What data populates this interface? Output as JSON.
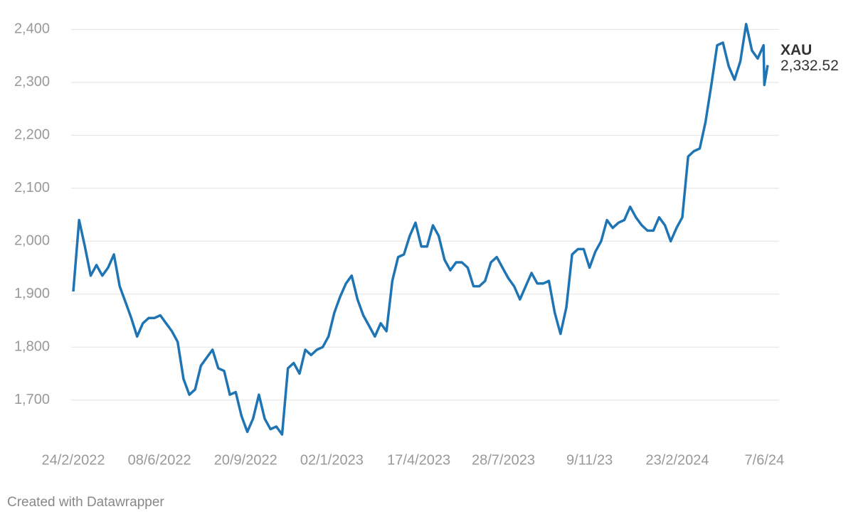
{
  "chart_data": {
    "type": "line",
    "footer": "Created with Datawrapper",
    "x": [
      "2022-02-24",
      "2022-03-03",
      "2022-03-10",
      "2022-03-17",
      "2022-03-24",
      "2022-03-31",
      "2022-04-07",
      "2022-04-14",
      "2022-04-21",
      "2022-04-28",
      "2022-05-05",
      "2022-05-12",
      "2022-05-19",
      "2022-05-26",
      "2022-06-02",
      "2022-06-09",
      "2022-06-16",
      "2022-06-23",
      "2022-06-30",
      "2022-07-07",
      "2022-07-14",
      "2022-07-21",
      "2022-07-28",
      "2022-08-04",
      "2022-08-11",
      "2022-08-18",
      "2022-08-25",
      "2022-09-01",
      "2022-09-08",
      "2022-09-15",
      "2022-09-22",
      "2022-09-29",
      "2022-10-06",
      "2022-10-13",
      "2022-10-20",
      "2022-10-27",
      "2022-11-03",
      "2022-11-10",
      "2022-11-17",
      "2022-11-24",
      "2022-12-01",
      "2022-12-08",
      "2022-12-15",
      "2022-12-22",
      "2022-12-29",
      "2023-01-05",
      "2023-01-12",
      "2023-01-19",
      "2023-01-26",
      "2023-02-02",
      "2023-02-09",
      "2023-02-16",
      "2023-02-23",
      "2023-03-02",
      "2023-03-09",
      "2023-03-16",
      "2023-03-23",
      "2023-03-30",
      "2023-04-06",
      "2023-04-13",
      "2023-04-20",
      "2023-04-27",
      "2023-05-04",
      "2023-05-11",
      "2023-05-18",
      "2023-05-25",
      "2023-06-01",
      "2023-06-08",
      "2023-06-15",
      "2023-06-22",
      "2023-06-29",
      "2023-07-06",
      "2023-07-13",
      "2023-07-20",
      "2023-07-27",
      "2023-08-03",
      "2023-08-10",
      "2023-08-17",
      "2023-08-24",
      "2023-08-31",
      "2023-09-07",
      "2023-09-14",
      "2023-09-21",
      "2023-09-28",
      "2023-10-05",
      "2023-10-12",
      "2023-10-19",
      "2023-10-26",
      "2023-11-02",
      "2023-11-09",
      "2023-11-16",
      "2023-11-23",
      "2023-11-30",
      "2023-12-07",
      "2023-12-14",
      "2023-12-21",
      "2023-12-28",
      "2024-01-04",
      "2024-01-11",
      "2024-01-18",
      "2024-01-25",
      "2024-02-01",
      "2024-02-08",
      "2024-02-15",
      "2024-02-22",
      "2024-02-29",
      "2024-03-07",
      "2024-03-14",
      "2024-03-21",
      "2024-03-28",
      "2024-04-04",
      "2024-04-11",
      "2024-04-18",
      "2024-04-25",
      "2024-05-02",
      "2024-05-09",
      "2024-05-16",
      "2024-05-23",
      "2024-05-30",
      "2024-06-06",
      "2024-06-07",
      "2024-06-11"
    ],
    "series": [
      {
        "name": "XAU",
        "color": "#1f74b4",
        "values": [
          1905,
          2040,
          1990,
          1935,
          1955,
          1935,
          1950,
          1975,
          1915,
          1885,
          1855,
          1820,
          1845,
          1855,
          1855,
          1860,
          1845,
          1830,
          1810,
          1740,
          1710,
          1720,
          1765,
          1780,
          1795,
          1760,
          1755,
          1710,
          1715,
          1670,
          1640,
          1665,
          1710,
          1665,
          1645,
          1650,
          1635,
          1760,
          1770,
          1750,
          1795,
          1785,
          1795,
          1800,
          1820,
          1865,
          1895,
          1920,
          1935,
          1890,
          1860,
          1840,
          1820,
          1845,
          1830,
          1925,
          1970,
          1975,
          2010,
          2035,
          1990,
          1990,
          2030,
          2010,
          1965,
          1945,
          1960,
          1960,
          1950,
          1915,
          1915,
          1925,
          1960,
          1970,
          1950,
          1930,
          1915,
          1890,
          1915,
          1940,
          1920,
          1920,
          1925,
          1865,
          1825,
          1875,
          1975,
          1985,
          1985,
          1950,
          1980,
          2000,
          2040,
          2025,
          2035,
          2040,
          2065,
          2045,
          2030,
          2020,
          2020,
          2045,
          2030,
          2000,
          2025,
          2045,
          2160,
          2170,
          2175,
          2225,
          2295,
          2370,
          2375,
          2330,
          2305,
          2340,
          2410,
          2360,
          2345,
          2370,
          2295,
          2332.52
        ],
        "value_labels": [
          null,
          null,
          null,
          null,
          null,
          null,
          null,
          null,
          null,
          null,
          null,
          null,
          null,
          null,
          null,
          null,
          null,
          null,
          null,
          null,
          null,
          null,
          null,
          null,
          null,
          null,
          null,
          null,
          null,
          null,
          null,
          null,
          null,
          null,
          null,
          null,
          null,
          null,
          null,
          null,
          null,
          null,
          null,
          null,
          null,
          null,
          null,
          null,
          null,
          null,
          null,
          null,
          null,
          null,
          null,
          null,
          null,
          null,
          null,
          null,
          null,
          null,
          null,
          null,
          null,
          null,
          null,
          null,
          null,
          null,
          null,
          null,
          null,
          null,
          null,
          null,
          null,
          null,
          null,
          null,
          null,
          null,
          null,
          null,
          null,
          null,
          null,
          null,
          null,
          null,
          null,
          null,
          null,
          null,
          null,
          null,
          null,
          null,
          null,
          null,
          null,
          null,
          null,
          null,
          null,
          null,
          null,
          null,
          null,
          null,
          null,
          null,
          null,
          null,
          null,
          null,
          null,
          null,
          null,
          null,
          null,
          "2,332.52"
        ]
      }
    ],
    "xlim": [
      "2022-02-24",
      "2024-06-11"
    ],
    "xticks": [
      {
        "value": "2022-02-24",
        "label": "24/2/2022"
      },
      {
        "value": "2022-06-08",
        "label": "08/6/2022"
      },
      {
        "value": "2022-09-20",
        "label": "20/9/2022"
      },
      {
        "value": "2023-01-02",
        "label": "02/1/2023"
      },
      {
        "value": "2023-04-17",
        "label": "17/4/2023"
      },
      {
        "value": "2023-07-28",
        "label": "28/7/2023"
      },
      {
        "value": "2023-11-09",
        "label": "9/11/23"
      },
      {
        "value": "2024-02-23",
        "label": "23/2/2024"
      },
      {
        "value": "2024-06-07",
        "label": "7/6/24"
      }
    ],
    "ylim": [
      1615,
      2430
    ],
    "yticks": [
      {
        "value": 1700,
        "label": "1,700"
      },
      {
        "value": 1800,
        "label": "1,800"
      },
      {
        "value": 1900,
        "label": "1,900"
      },
      {
        "value": 2000,
        "label": "2,000"
      },
      {
        "value": 2100,
        "label": "2,100"
      },
      {
        "value": 2200,
        "label": "2,200"
      },
      {
        "value": 2300,
        "label": "2,300"
      },
      {
        "value": 2400,
        "label": "2,400"
      }
    ],
    "grid": true
  }
}
